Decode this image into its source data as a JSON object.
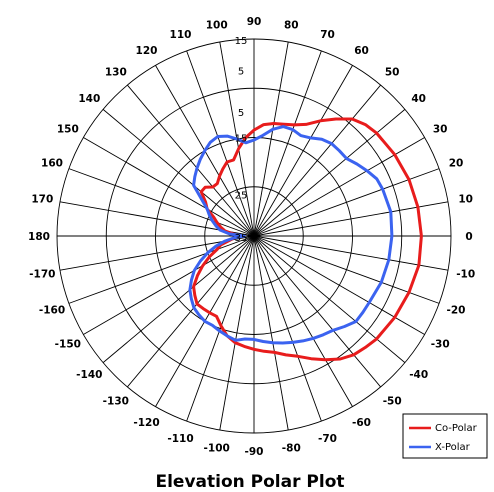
{
  "chart_data": {
    "type": "polar-line",
    "title": "Elevation Polar Plot",
    "angle_unit": "degrees",
    "angle_ticks": [
      0,
      10,
      20,
      30,
      40,
      50,
      60,
      70,
      80,
      90,
      100,
      110,
      120,
      130,
      140,
      150,
      160,
      170,
      180,
      -170,
      -160,
      -150,
      -140,
      -130,
      -120,
      -110,
      -100,
      -90,
      -80,
      -70,
      -60,
      -50,
      -40,
      -30,
      -20,
      -10
    ],
    "radial_scale": {
      "outer": 5,
      "center": -35,
      "step": 10
    },
    "radial_tick_labels": [
      "15",
      "5",
      "5",
      "15",
      "25",
      "35"
    ],
    "legend_position": "bottom-right",
    "series": [
      {
        "name": "Co-Polar",
        "color": "#e81c1c",
        "points": [
          [
            0,
            -1
          ],
          [
            10,
            -1.2
          ],
          [
            20,
            -1.5
          ],
          [
            30,
            -2
          ],
          [
            40,
            -2.5
          ],
          [
            45,
            -3
          ],
          [
            50,
            -4
          ],
          [
            55,
            -6
          ],
          [
            60,
            -8
          ],
          [
            65,
            -10
          ],
          [
            70,
            -11
          ],
          [
            75,
            -11.5
          ],
          [
            80,
            -11.8
          ],
          [
            85,
            -12.3
          ],
          [
            90,
            -13.5
          ],
          [
            95,
            -15
          ],
          [
            100,
            -17
          ],
          [
            105,
            -19
          ],
          [
            110,
            -19
          ],
          [
            115,
            -20
          ],
          [
            120,
            -21
          ],
          [
            125,
            -22
          ],
          [
            130,
            -22
          ],
          [
            135,
            -21
          ],
          [
            140,
            -21
          ],
          [
            145,
            -23
          ],
          [
            150,
            -24
          ],
          [
            155,
            -26
          ],
          [
            160,
            -27
          ],
          [
            165,
            -28
          ],
          [
            170,
            -29
          ],
          [
            175,
            -31
          ],
          [
            180,
            -32
          ],
          [
            -175,
            -31
          ],
          [
            -170,
            -30
          ],
          [
            -165,
            -28
          ],
          [
            -160,
            -27
          ],
          [
            -155,
            -25
          ],
          [
            -150,
            -23
          ],
          [
            -145,
            -21
          ],
          [
            -140,
            -19
          ],
          [
            -135,
            -18
          ],
          [
            -130,
            -17
          ],
          [
            -125,
            -17
          ],
          [
            -120,
            -17
          ],
          [
            -115,
            -17
          ],
          [
            -110,
            -15.5
          ],
          [
            -105,
            -14
          ],
          [
            -100,
            -13
          ],
          [
            -95,
            -12.5
          ],
          [
            -90,
            -12
          ],
          [
            -85,
            -11.5
          ],
          [
            -80,
            -11
          ],
          [
            -75,
            -10
          ],
          [
            -70,
            -9
          ],
          [
            -65,
            -7.5
          ],
          [
            -60,
            -6
          ],
          [
            -55,
            -4.5
          ],
          [
            -50,
            -3.5
          ],
          [
            -45,
            -3
          ],
          [
            -40,
            -2.5
          ],
          [
            -30,
            -2
          ],
          [
            -20,
            -1.5
          ],
          [
            -10,
            -1
          ]
        ]
      },
      {
        "name": "X-Polar",
        "color": "#3b63f0",
        "points": [
          [
            0,
            -7
          ],
          [
            10,
            -6.8
          ],
          [
            20,
            -7.2
          ],
          [
            25,
            -7.5
          ],
          [
            30,
            -8.5
          ],
          [
            35,
            -9.5
          ],
          [
            40,
            -10.5
          ],
          [
            45,
            -10.5
          ],
          [
            50,
            -10.5
          ],
          [
            55,
            -11
          ],
          [
            60,
            -12
          ],
          [
            65,
            -12.5
          ],
          [
            70,
            -12
          ],
          [
            75,
            -12
          ],
          [
            80,
            -13
          ],
          [
            85,
            -14.5
          ],
          [
            90,
            -15.5
          ],
          [
            95,
            -16
          ],
          [
            100,
            -15
          ],
          [
            105,
            -14
          ],
          [
            110,
            -13.5
          ],
          [
            115,
            -14
          ],
          [
            120,
            -15
          ],
          [
            125,
            -16
          ],
          [
            130,
            -17
          ],
          [
            135,
            -18
          ],
          [
            140,
            -19
          ],
          [
            145,
            -22
          ],
          [
            150,
            -24
          ],
          [
            155,
            -25
          ],
          [
            160,
            -26
          ],
          [
            165,
            -27
          ],
          [
            170,
            -28
          ],
          [
            175,
            -30
          ],
          [
            180,
            -33
          ],
          [
            -175,
            -31
          ],
          [
            -170,
            -29
          ],
          [
            -165,
            -27
          ],
          [
            -160,
            -25
          ],
          [
            -155,
            -23
          ],
          [
            -150,
            -21
          ],
          [
            -145,
            -19.5
          ],
          [
            -140,
            -18
          ],
          [
            -135,
            -17
          ],
          [
            -130,
            -16
          ],
          [
            -125,
            -15.5
          ],
          [
            -120,
            -15
          ],
          [
            -115,
            -15
          ],
          [
            -110,
            -14.5
          ],
          [
            -105,
            -14
          ],
          [
            -100,
            -13.5
          ],
          [
            -95,
            -14
          ],
          [
            -90,
            -14
          ],
          [
            -85,
            -13.5
          ],
          [
            -80,
            -13
          ],
          [
            -75,
            -12.5
          ],
          [
            -70,
            -12
          ],
          [
            -65,
            -11.5
          ],
          [
            -60,
            -11
          ],
          [
            -55,
            -10.5
          ],
          [
            -50,
            -10
          ],
          [
            -45,
            -9
          ],
          [
            -40,
            -8
          ],
          [
            -35,
            -8
          ],
          [
            -30,
            -8
          ],
          [
            -20,
            -7.5
          ],
          [
            -10,
            -7.2
          ]
        ]
      }
    ]
  }
}
